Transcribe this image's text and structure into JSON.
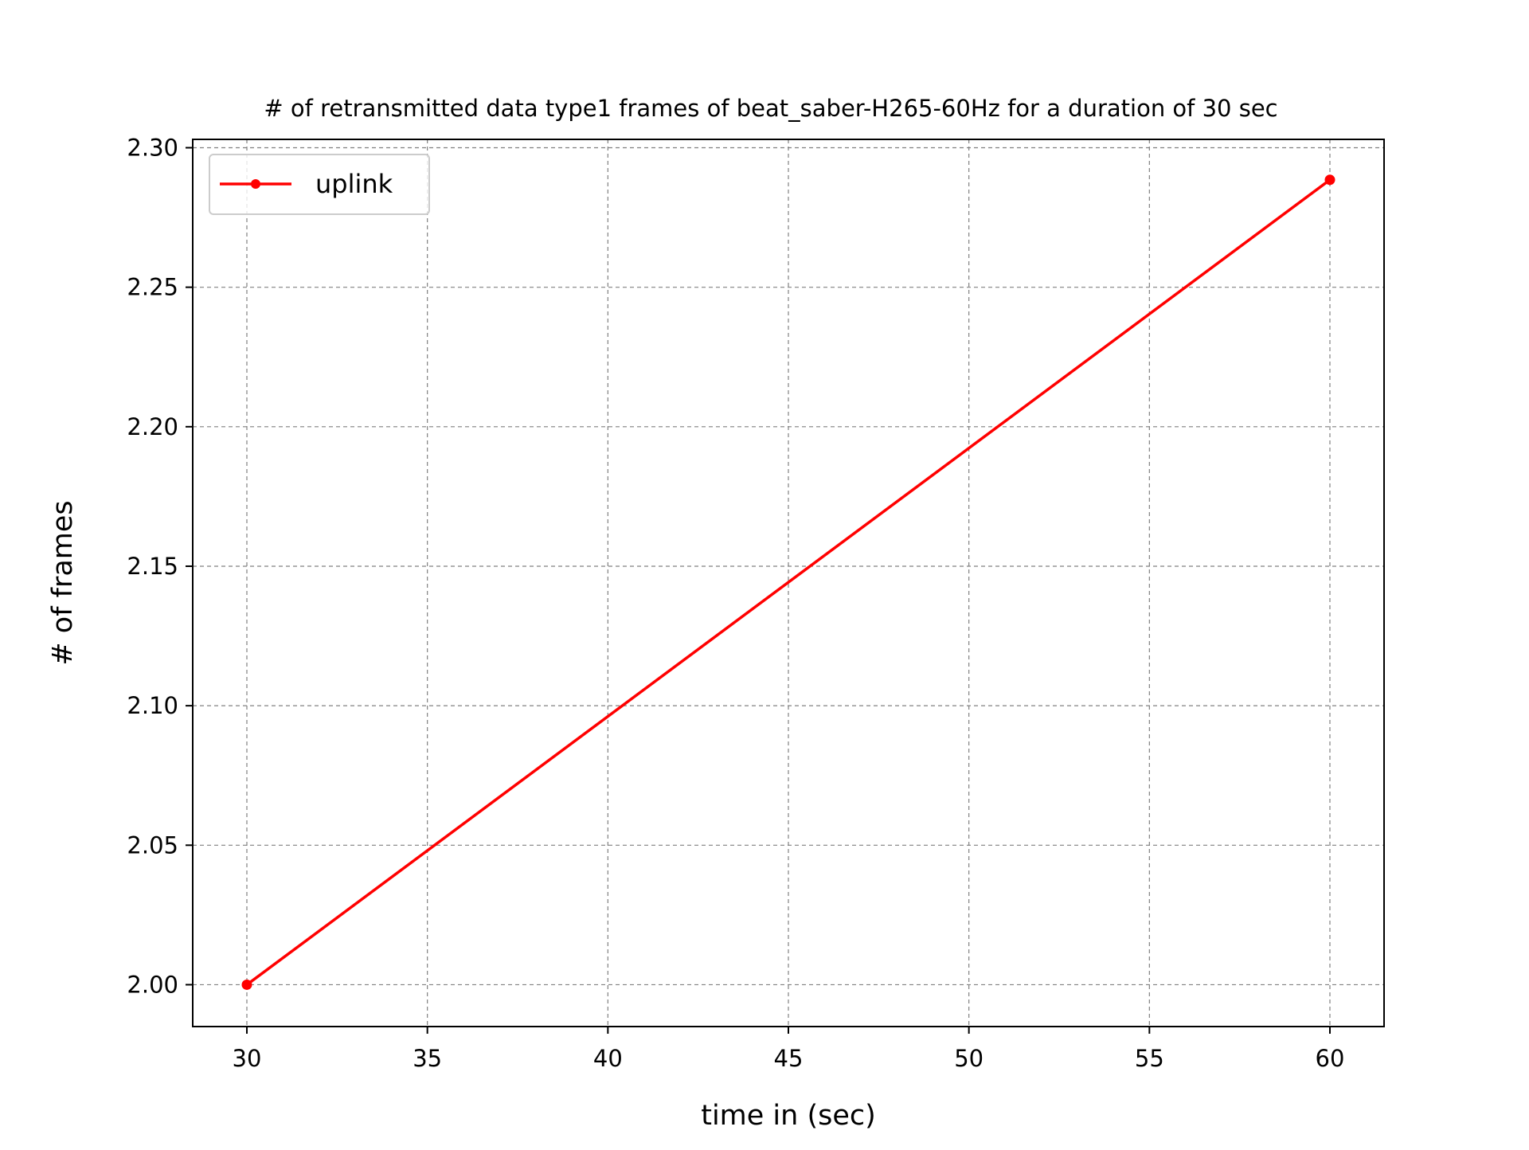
{
  "chart_data": {
    "type": "line",
    "title": "# of retransmitted data type1 frames of beat_saber-H265-60Hz for a duration of 30 sec",
    "xlabel": "time in (sec)",
    "ylabel": "# of frames",
    "xlim": [
      28.5,
      61.5
    ],
    "ylim": [
      1.985,
      2.303
    ],
    "x_ticks": [
      30,
      35,
      40,
      45,
      50,
      55,
      60
    ],
    "x_tick_labels": [
      "30",
      "35",
      "40",
      "45",
      "50",
      "55",
      "60"
    ],
    "y_ticks": [
      2.0,
      2.05,
      2.1,
      2.15,
      2.2,
      2.25,
      2.3
    ],
    "y_tick_labels": [
      "2.00",
      "2.05",
      "2.10",
      "2.15",
      "2.20",
      "2.25",
      "2.30"
    ],
    "grid": true,
    "legend_position": "top-left",
    "series": [
      {
        "name": "uplink",
        "color": "#ff0000",
        "marker": "dot",
        "x": [
          30,
          60
        ],
        "y": [
          2.0,
          2.2885
        ]
      }
    ]
  }
}
